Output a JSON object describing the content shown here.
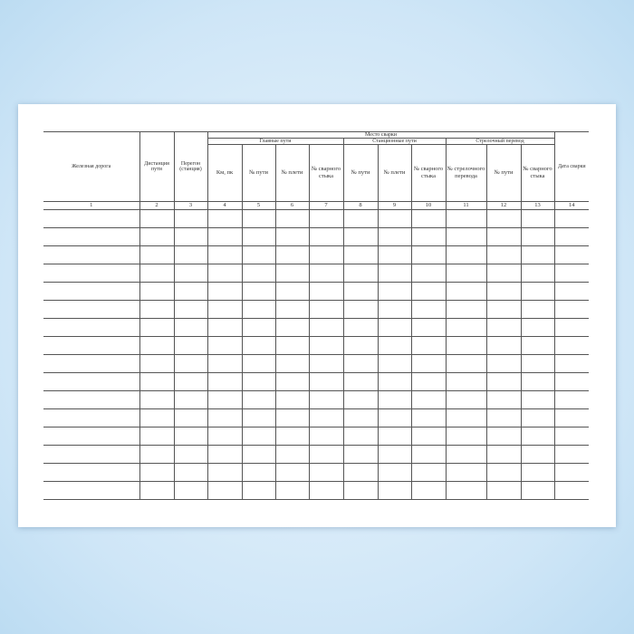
{
  "form": {
    "group_main": "Место сварки",
    "groups": [
      "Главные пути",
      "Станционные пути",
      "Стрелочный перевод"
    ],
    "columns": [
      "Железная дорога",
      "Дистанция пути",
      "Перегон (станция)",
      "Км, пк",
      "№ пути",
      "№ плети",
      "№ сварного стыка",
      "№ пути",
      "№ плети",
      "№ сварного стыка",
      "№ стрелочного перевода",
      "№ пути",
      "№ сварного стыка",
      "Дата сварки"
    ],
    "numbers": [
      "1",
      "2",
      "3",
      "4",
      "5",
      "6",
      "7",
      "8",
      "9",
      "10",
      "11",
      "12",
      "13",
      "14"
    ],
    "empty_rows": 16
  }
}
